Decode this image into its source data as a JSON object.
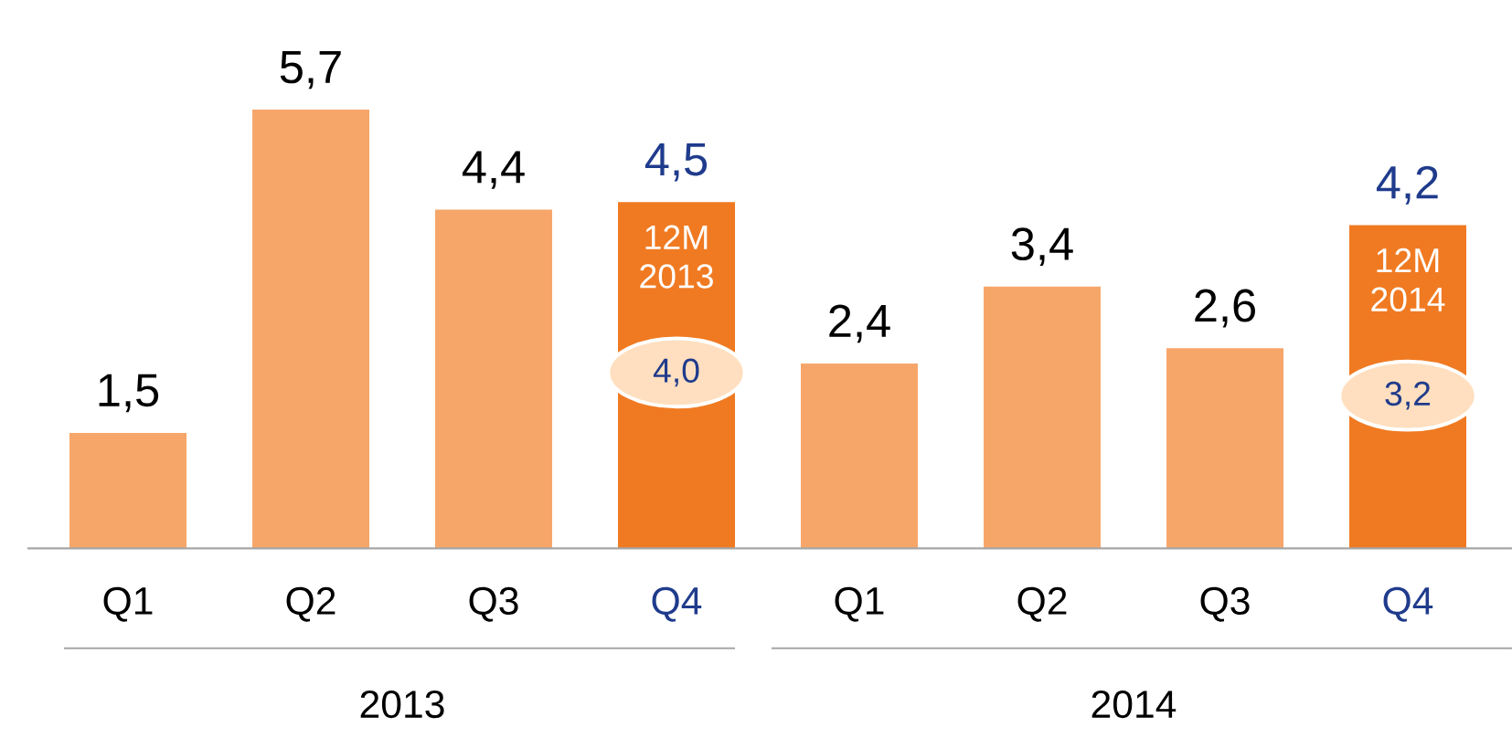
{
  "chart_data": {
    "type": "bar",
    "categories": [
      "Q1",
      "Q2",
      "Q3",
      "Q4",
      "Q1",
      "Q2",
      "Q3",
      "Q4"
    ],
    "values": [
      1.5,
      5.7,
      4.4,
      4.5,
      2.4,
      3.4,
      2.6,
      4.2
    ],
    "colors": [
      "#f7a66a",
      "#f7a66a",
      "#f7a66a",
      "#f07a22",
      "#f7a66a",
      "#f7a66a",
      "#f7a66a",
      "#f07a22"
    ],
    "value_labels": [
      "1,5",
      "5,7",
      "4,4",
      "4,5",
      "2,4",
      "3,4",
      "2,6",
      "4,2"
    ],
    "annotations": [
      "12M 2013",
      "4,0",
      "12M 2014",
      "3,2",
      "2013",
      "2014"
    ]
  }
}
